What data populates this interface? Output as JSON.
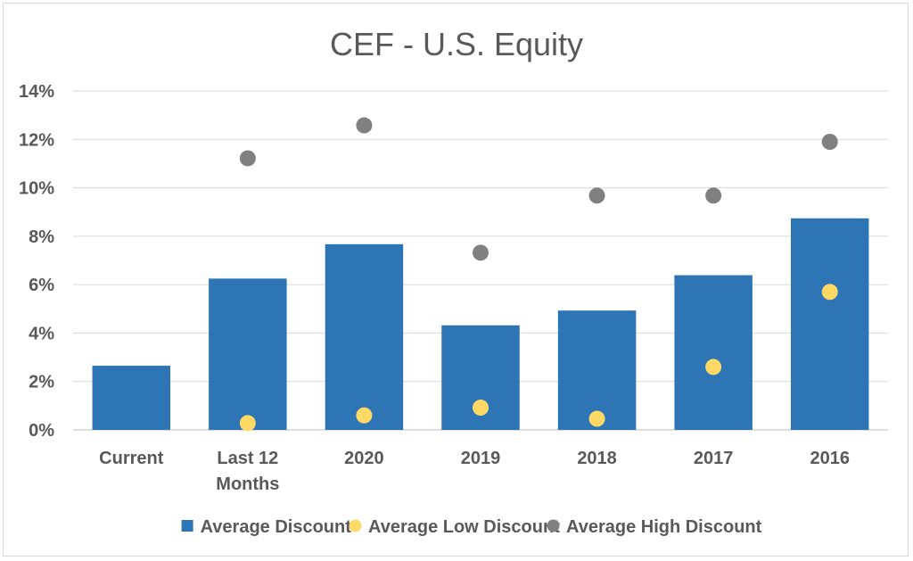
{
  "chart_data": {
    "type": "bar",
    "title": "CEF - U.S. Equity",
    "xlabel": "",
    "ylabel": "",
    "categories": [
      [
        "Current"
      ],
      [
        "Last 12",
        "Months"
      ],
      [
        "2020"
      ],
      [
        "2019"
      ],
      [
        "2018"
      ],
      [
        "2017"
      ],
      [
        "2016"
      ]
    ],
    "y_ticks": [
      "0%",
      "2%",
      "4%",
      "6%",
      "8%",
      "10%",
      "12%",
      "14%"
    ],
    "ylim": [
      0,
      14
    ],
    "grid": true,
    "legend_position": "bottom",
    "series": [
      {
        "name": "Average Discount",
        "kind": "bar",
        "color": "#2e75b6",
        "values": [
          2.65,
          6.25,
          7.67,
          4.32,
          4.93,
          6.39,
          8.74
        ]
      },
      {
        "name": "Average Low Discount",
        "kind": "scatter",
        "color": "#ffd966",
        "values": [
          null,
          0.28,
          0.6,
          0.92,
          0.46,
          2.6,
          5.7
        ]
      },
      {
        "name": "Average High Discount",
        "kind": "scatter",
        "color": "#808080",
        "values": [
          null,
          11.22,
          12.58,
          7.32,
          9.68,
          9.68,
          11.9
        ]
      }
    ]
  }
}
